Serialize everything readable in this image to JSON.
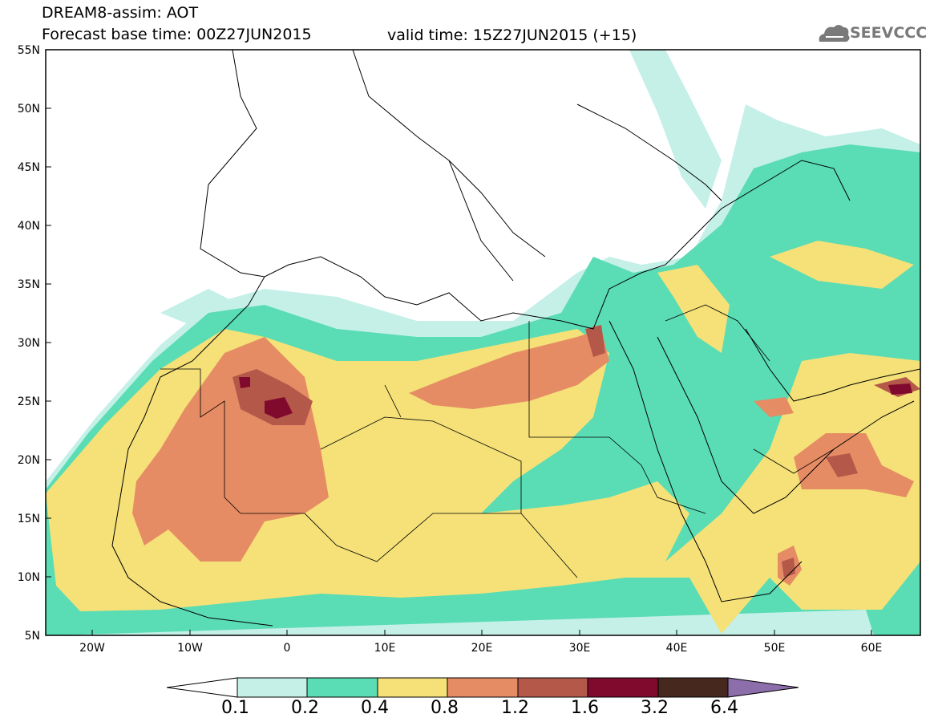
{
  "header": {
    "title": "DREAM8-assim: AOT",
    "base_time": "Forecast base time: 00Z27JUN2015",
    "valid_time": "valid time: 15Z27JUN2015 (+15)",
    "logo_text": "SEEVCCC"
  },
  "map": {
    "variable": "AOT",
    "lat_labels": [
      "55N",
      "50N",
      "45N",
      "40N",
      "35N",
      "30N",
      "25N",
      "20N",
      "15N",
      "10N",
      "5N"
    ],
    "lon_labels": [
      "20W",
      "10W",
      "0",
      "10E",
      "20E",
      "30E",
      "40E",
      "50E",
      "60E"
    ]
  },
  "colorbar": {
    "labels": [
      "0.1",
      "0.2",
      "0.4",
      "0.8",
      "1.2",
      "1.6",
      "3.2",
      "6.4"
    ],
    "colors": [
      "#c4f0e8",
      "#5adcb4",
      "#f5e178",
      "#e68c64",
      "#b4584a",
      "#800a2d",
      "#46281e",
      "#8c6eaa"
    ],
    "under_color": "#ffffff"
  }
}
